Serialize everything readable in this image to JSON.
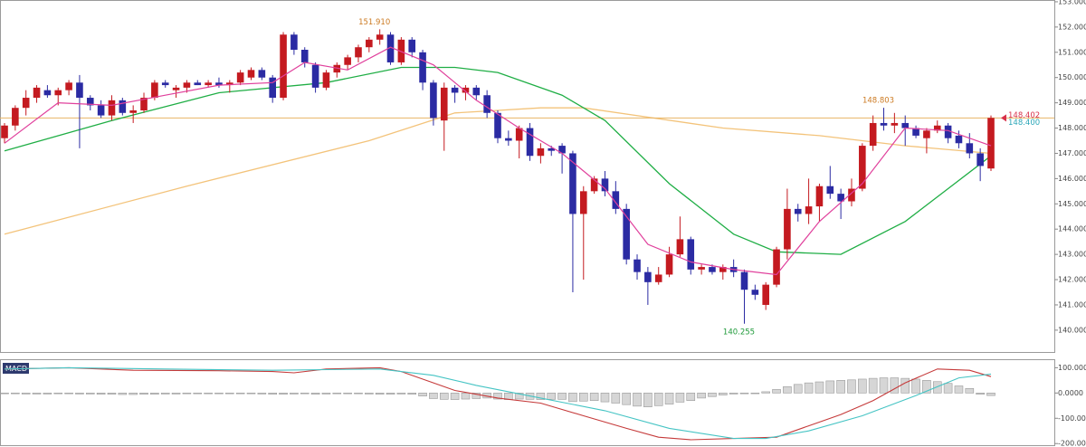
{
  "chart_data": [
    {
      "type": "candlestick",
      "ylim": [
        139.1,
        153.07
      ],
      "yticks": [
        {
          "value": 140,
          "label": "140.000"
        },
        {
          "value": 141,
          "label": "141.000"
        },
        {
          "value": 142,
          "label": "142.000"
        },
        {
          "value": 143,
          "label": "143.000"
        },
        {
          "value": 144,
          "label": "144.000"
        },
        {
          "value": 145,
          "label": "145.000"
        },
        {
          "value": 146,
          "label": "146.000"
        },
        {
          "value": 147,
          "label": "147.000"
        },
        {
          "value": 148,
          "label": "148.000"
        },
        {
          "value": 149,
          "label": "149.000"
        },
        {
          "value": 150,
          "label": "150.000"
        },
        {
          "value": 151,
          "label": "151.000"
        },
        {
          "value": 152,
          "label": "152.000"
        },
        {
          "value": 153,
          "label": "153.000"
        }
      ],
      "up_color": "#c41a20",
      "down_color": "#2b2ba3",
      "open": [
        147.6,
        148.1,
        148.8,
        149.2,
        149.5,
        149.3,
        149.5,
        149.8,
        149.2,
        148.9,
        148.5,
        149.1,
        148.6,
        148.7,
        149.2,
        149.8,
        149.5,
        149.6,
        149.8,
        149.7,
        149.8,
        149.7,
        149.8,
        150.0,
        150.3,
        150.0,
        149.2,
        151.7,
        151.1,
        150.5,
        149.6,
        150.2,
        150.5,
        150.8,
        151.2,
        151.5,
        151.7,
        150.6,
        151.5,
        151.0,
        149.8,
        148.3,
        149.6,
        149.4,
        149.6,
        149.3,
        148.6,
        147.6,
        147.5,
        148.0,
        146.9,
        147.2,
        147.3,
        147.0,
        144.6,
        145.5,
        146.0,
        145.5,
        144.8,
        142.8,
        142.3,
        141.9,
        142.2,
        143.0,
        143.6,
        142.4,
        142.5,
        142.3,
        142.5,
        142.3,
        141.6,
        141.0,
        141.8,
        143.2,
        144.8,
        144.6,
        144.9,
        145.7,
        145.4,
        145.1,
        145.6,
        147.3,
        148.2,
        148.1,
        148.2,
        148.0,
        147.6,
        147.9,
        148.1,
        147.7,
        147.4,
        147.0,
        146.4
      ],
      "high": [
        148.2,
        148.9,
        149.5,
        149.7,
        149.7,
        149.6,
        149.9,
        150.1,
        149.3,
        149.1,
        149.3,
        149.2,
        148.9,
        149.4,
        149.9,
        149.9,
        149.7,
        149.9,
        149.9,
        149.9,
        150.0,
        149.9,
        150.3,
        150.4,
        150.4,
        150.1,
        151.8,
        151.8,
        151.2,
        150.6,
        150.3,
        150.6,
        150.9,
        151.3,
        151.6,
        151.91,
        151.8,
        151.6,
        151.6,
        151.1,
        149.9,
        149.8,
        149.7,
        149.7,
        149.7,
        149.5,
        148.7,
        147.9,
        148.1,
        148.2,
        147.4,
        147.3,
        147.4,
        147.1,
        145.7,
        146.1,
        146.3,
        145.9,
        145.0,
        143.0,
        142.5,
        142.5,
        143.3,
        144.5,
        143.7,
        142.6,
        142.6,
        142.6,
        142.8,
        142.4,
        141.8,
        141.9,
        143.3,
        145.6,
        145.0,
        146.0,
        145.8,
        146.5,
        145.6,
        146.0,
        147.4,
        148.5,
        148.803,
        148.6,
        148.5,
        148.1,
        148.0,
        148.3,
        148.2,
        147.9,
        147.8,
        147.2,
        148.5
      ],
      "low": [
        147.4,
        147.9,
        148.5,
        149.0,
        149.2,
        148.9,
        149.3,
        147.2,
        148.7,
        148.4,
        148.3,
        148.5,
        148.2,
        148.6,
        149.1,
        149.6,
        149.2,
        149.4,
        149.7,
        149.6,
        149.6,
        149.4,
        149.7,
        149.9,
        149.9,
        149.0,
        149.1,
        150.9,
        150.4,
        149.4,
        149.5,
        150.0,
        150.3,
        150.6,
        151.0,
        151.3,
        150.5,
        150.5,
        150.8,
        149.5,
        148.1,
        147.1,
        149.0,
        149.1,
        149.1,
        148.4,
        147.4,
        147.3,
        146.8,
        146.7,
        146.6,
        146.9,
        146.2,
        141.5,
        142.0,
        145.4,
        145.3,
        144.6,
        142.6,
        142.0,
        141.0,
        141.8,
        142.1,
        142.9,
        142.2,
        142.2,
        142.2,
        142.0,
        142.1,
        140.255,
        141.2,
        140.8,
        141.7,
        142.8,
        144.3,
        144.2,
        144.3,
        145.2,
        144.4,
        144.9,
        145.5,
        147.1,
        147.9,
        147.8,
        147.3,
        147.6,
        147.0,
        147.8,
        147.4,
        147.2,
        146.8,
        145.9,
        146.3
      ],
      "close": [
        148.1,
        148.8,
        149.2,
        149.6,
        149.3,
        149.5,
        149.8,
        149.2,
        148.9,
        148.5,
        149.1,
        148.6,
        148.7,
        149.2,
        149.8,
        149.7,
        149.6,
        149.8,
        149.7,
        149.8,
        149.7,
        149.8,
        150.2,
        150.3,
        150.0,
        149.2,
        151.7,
        151.1,
        150.6,
        149.6,
        150.2,
        150.5,
        150.8,
        151.2,
        151.5,
        151.7,
        150.6,
        151.5,
        151.0,
        149.8,
        148.4,
        149.6,
        149.4,
        149.6,
        149.3,
        148.6,
        147.6,
        147.5,
        148.0,
        146.9,
        147.2,
        147.1,
        147.0,
        144.6,
        145.5,
        146.0,
        145.5,
        144.8,
        142.8,
        142.3,
        141.9,
        142.2,
        143.0,
        143.6,
        142.4,
        142.5,
        142.3,
        142.5,
        142.3,
        141.6,
        141.4,
        141.8,
        143.2,
        144.8,
        144.6,
        144.9,
        145.7,
        145.4,
        145.1,
        145.6,
        147.3,
        148.2,
        148.1,
        148.2,
        148.0,
        147.7,
        147.9,
        148.1,
        147.6,
        147.4,
        147.0,
        146.5,
        148.402
      ],
      "overlays": [
        {
          "color": "#f3c37a",
          "x": [
            0,
            17,
            34,
            42,
            50,
            54,
            67,
            76,
            84,
            92
          ],
          "values": [
            143.8,
            145.7,
            147.5,
            148.6,
            148.8,
            148.8,
            148.0,
            147.7,
            147.3,
            147.0
          ]
        },
        {
          "color": "#1fae45",
          "x": [
            0,
            10,
            20,
            30,
            37,
            42,
            46,
            52,
            56,
            62,
            68,
            72,
            78,
            84,
            88,
            92
          ],
          "values": [
            147.1,
            148.3,
            149.4,
            149.8,
            150.4,
            150.4,
            150.2,
            149.3,
            148.3,
            145.8,
            143.8,
            143.1,
            143.0,
            144.3,
            145.6,
            146.9
          ]
        },
        {
          "color": "#e0409c",
          "x": [
            0,
            5,
            10,
            15,
            20,
            25,
            28,
            32,
            36,
            40,
            44,
            48,
            52,
            56,
            60,
            64,
            68,
            72,
            76,
            80,
            84,
            88,
            92
          ],
          "values": [
            147.4,
            149.0,
            148.9,
            149.3,
            149.7,
            149.8,
            150.6,
            150.3,
            151.2,
            150.5,
            149.1,
            148.0,
            147.0,
            145.6,
            143.4,
            142.7,
            142.4,
            142.2,
            144.3,
            145.8,
            148.0,
            147.9,
            147.3
          ]
        }
      ],
      "price_line": {
        "value": 148.402,
        "label": "148.402",
        "color": "#e8b464",
        "label_color": "#d8304a"
      },
      "bid": {
        "value": 148.4,
        "label": "148.400",
        "color": "#2aa6b8"
      },
      "annotations": [
        {
          "label": "151.910",
          "candle": 35,
          "anchor": "high",
          "color": "#cc7a22"
        },
        {
          "label": "148.803",
          "candle": 82,
          "anchor": "high",
          "color": "#cc7a22"
        },
        {
          "label": "140.255",
          "candle": 69,
          "anchor": "low",
          "color": "#1f9a3a"
        }
      ]
    },
    {
      "type": "macd",
      "title": "MACD",
      "ylim": [
        -210,
        130
      ],
      "yticks": [
        {
          "value": 100,
          "label": "100.0000"
        },
        {
          "value": 0,
          "label": "0.0000"
        },
        {
          "value": -100,
          "label": "-100.0000"
        },
        {
          "value": -200,
          "label": "-200.0000"
        }
      ],
      "histogram_color": "#d6d6d6",
      "histogram": [
        -3,
        -3,
        -4,
        -4,
        -4,
        -3,
        -3,
        -4,
        -4,
        -5,
        -5,
        -6,
        -6,
        -5,
        -5,
        -4,
        -4,
        -3,
        -3,
        -3,
        -3,
        -3,
        -3,
        -3,
        -4,
        -5,
        -5,
        -4,
        -3,
        -5,
        -4,
        -3,
        -3,
        -3,
        -4,
        -5,
        -5,
        -4,
        -5,
        -12,
        -22,
        -25,
        -26,
        -24,
        -22,
        -20,
        -24,
        -26,
        -24,
        -25,
        -26,
        -25,
        -25,
        -34,
        -32,
        -30,
        -35,
        -40,
        -46,
        -52,
        -55,
        -50,
        -44,
        -36,
        -30,
        -20,
        -14,
        -8,
        -4,
        -3,
        -2,
        5,
        14,
        25,
        34,
        40,
        44,
        48,
        50,
        52,
        55,
        58,
        60,
        60,
        58,
        55,
        50,
        45,
        38,
        28,
        18,
        -5,
        -10
      ],
      "lines": [
        {
          "color": "#c53a3a",
          "x": [
            0,
            6,
            12,
            20,
            25,
            27,
            30,
            35,
            37,
            40,
            42,
            46,
            50,
            54,
            58,
            61,
            64,
            68,
            72,
            75,
            78,
            81,
            84,
            87,
            90,
            92
          ],
          "values": [
            95,
            100,
            90,
            88,
            85,
            80,
            95,
            100,
            85,
            40,
            10,
            -20,
            -40,
            -90,
            -140,
            -175,
            -185,
            -180,
            -175,
            -130,
            -85,
            -30,
            40,
            95,
            90,
            65
          ]
        },
        {
          "color": "#45c4c4",
          "x": [
            0,
            6,
            15,
            25,
            35,
            40,
            44,
            50,
            56,
            62,
            68,
            71,
            75,
            80,
            85,
            89,
            92
          ],
          "values": [
            95,
            100,
            95,
            90,
            95,
            70,
            30,
            -20,
            -70,
            -140,
            -180,
            -180,
            -150,
            -90,
            -10,
            60,
            75
          ]
        }
      ]
    }
  ]
}
